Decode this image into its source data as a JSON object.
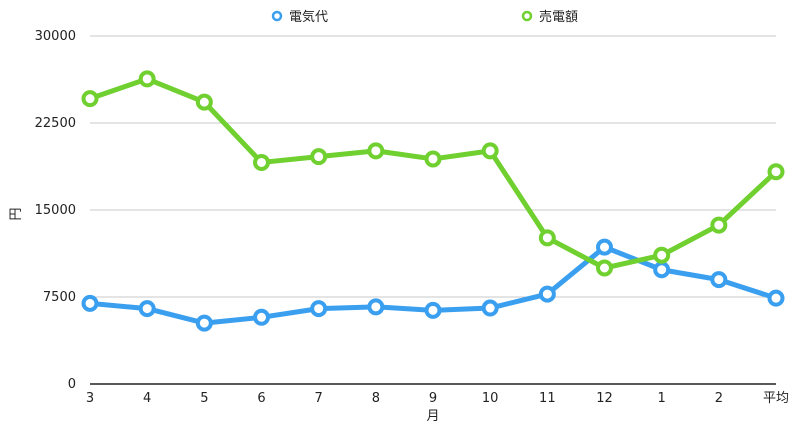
{
  "chart_data": {
    "type": "line",
    "title": "",
    "xlabel": "月",
    "ylabel": "円",
    "ylim": [
      0,
      30000
    ],
    "yticks": [
      0,
      7500,
      15000,
      22500,
      30000
    ],
    "grid": true,
    "legend_position": "top-center",
    "categories": [
      "3",
      "4",
      "5",
      "6",
      "7",
      "8",
      "9",
      "10",
      "11",
      "12",
      "1",
      "2",
      "平均"
    ],
    "series": [
      {
        "name": "電気代",
        "color": "#3b9ff0",
        "values": [
          6950,
          6500,
          5250,
          5750,
          6500,
          6650,
          6350,
          6550,
          7750,
          11800,
          9850,
          9000,
          7400
        ]
      },
      {
        "name": "売電額",
        "color": "#6fd02f",
        "values": [
          24600,
          26300,
          24300,
          19100,
          19600,
          20100,
          19400,
          20100,
          12600,
          10000,
          11100,
          13700,
          18300
        ]
      }
    ]
  }
}
